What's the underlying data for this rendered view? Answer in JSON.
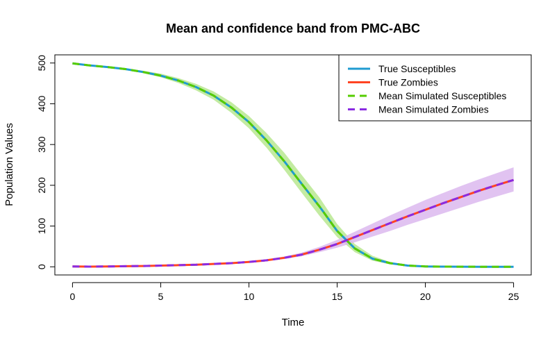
{
  "chart_data": {
    "type": "line",
    "title": "Mean and confidence band from PMC-ABC",
    "xlabel": "Time",
    "ylabel": "Population Values",
    "xlim": [
      -1,
      26
    ],
    "ylim": [
      -20,
      520
    ],
    "xticks": [
      0,
      5,
      10,
      15,
      20,
      25
    ],
    "yticks": [
      0,
      100,
      200,
      300,
      400,
      500
    ],
    "legend_position": "top-right",
    "x": [
      0,
      1,
      2,
      3,
      4,
      5,
      6,
      7,
      8,
      9,
      10,
      11,
      12,
      13,
      14,
      15,
      16,
      17,
      18,
      19,
      20,
      21,
      22,
      23,
      24,
      25
    ],
    "series": [
      {
        "name": "True Susceptibles",
        "color": "#1f9bd1",
        "dash": "solid",
        "values": [
          499,
          494,
          490,
          485,
          478,
          469,
          457,
          441,
          420,
          391,
          355,
          310,
          259,
          203,
          148,
          88,
          45,
          20,
          9,
          3,
          1,
          0.5,
          0.2,
          0.1,
          0,
          0
        ]
      },
      {
        "name": "True Zombies",
        "color": "#ff4422",
        "dash": "solid",
        "values": [
          1,
          0.5,
          1,
          1.5,
          2,
          3,
          4,
          5,
          7,
          9,
          12,
          16,
          22,
          30,
          42,
          56,
          73,
          90,
          107,
          124,
          140,
          156,
          171,
          186,
          200,
          213
        ]
      },
      {
        "name": "Mean Simulated Susceptibles",
        "color": "#55cc00",
        "dash": "dashed",
        "values": [
          499,
          494,
          490,
          485,
          478,
          469,
          457,
          441,
          420,
          391,
          355,
          310,
          259,
          203,
          148,
          88,
          45,
          20,
          9,
          3,
          1,
          0.5,
          0.2,
          0.1,
          0,
          0
        ]
      },
      {
        "name": "Mean Simulated Zombies",
        "color": "#8a2be2",
        "dash": "dashed",
        "values": [
          1,
          0.5,
          1,
          1.5,
          2,
          3,
          4,
          5,
          7,
          9,
          12,
          16,
          22,
          30,
          42,
          56,
          73,
          90,
          107,
          124,
          140,
          156,
          171,
          186,
          200,
          213
        ]
      }
    ],
    "bands": [
      {
        "series": "Mean Simulated Susceptibles",
        "color": "#b8e890",
        "lower": [
          499,
          493,
          489,
          483,
          475,
          465,
          451,
          433,
          410,
          378,
          340,
          292,
          238,
          181,
          125,
          73,
          36,
          15,
          6,
          2,
          0.5,
          0.2,
          0.1,
          0,
          0,
          0
        ],
        "upper": [
          499,
          495,
          491,
          487,
          481,
          474,
          463,
          449,
          430,
          404,
          370,
          328,
          280,
          225,
          170,
          105,
          56,
          27,
          12,
          4,
          1.5,
          0.8,
          0.4,
          0.2,
          0.1,
          0.1
        ]
      },
      {
        "series": "Mean Simulated Zombies",
        "color": "#dcb8ee",
        "lower": [
          1,
          0.5,
          1,
          1.4,
          1.8,
          2.6,
          3.4,
          4.3,
          6,
          7.8,
          10.5,
          14,
          19,
          26,
          36,
          47,
          60,
          74,
          88,
          103,
          117,
          131,
          145,
          159,
          172,
          185
        ],
        "upper": [
          1,
          0.5,
          1,
          1.6,
          2.2,
          3.4,
          4.6,
          5.7,
          8,
          10.3,
          13.7,
          18.3,
          25.3,
          35,
          49,
          66,
          86,
          106,
          126,
          145,
          164,
          181,
          198,
          214,
          229,
          244
        ]
      }
    ]
  }
}
